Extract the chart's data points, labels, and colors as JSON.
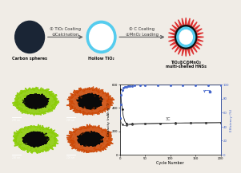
{
  "bg_color": "#f0ece6",
  "top_section": {
    "sphere1_color": "#1a2535",
    "sphere2_ring_color": "#55ccee",
    "sphere3_outer_color": "#cc2222",
    "sphere3_spike_color": "#dd3333",
    "arrow_color": "#666666",
    "label1": "Carbon spheres",
    "label2": "Hollow TiO₂",
    "label3": "TiO₂@C@MnO₂\nmulti-shelled HNSs",
    "step1_line1": "① TiO₂ Coating",
    "step1_line2": "②Calcination",
    "step2_line1": "① C Coating",
    "step2_line2": "②MnO₂ Loading"
  },
  "plot": {
    "xlabel": "Cycle Number",
    "ylabel_left": "Capacity (mAh g⁻¹)",
    "ylabel_right": "Efficiency (%)",
    "label_3C": "3C",
    "ylim_left": [
      0,
      600
    ],
    "ylim_right": [
      0,
      100
    ],
    "xlim": [
      0,
      200
    ],
    "xticks": [
      0,
      50,
      100,
      150,
      200
    ],
    "yticks_left": [
      0,
      200,
      400,
      600
    ],
    "yticks_right": [
      0,
      20,
      40,
      60,
      80,
      100
    ],
    "line_color_capacity": "#222222",
    "line_color_efficiency": "#4466cc",
    "bg_color": "#ffffff"
  }
}
